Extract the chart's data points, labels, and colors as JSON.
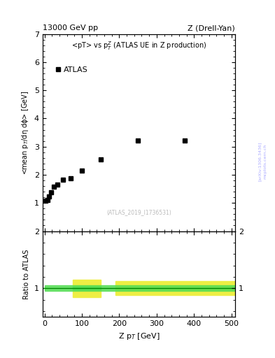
{
  "title_left": "13000 GeV pp",
  "title_right": "Z (Drell-Yan)",
  "main_title": "<pT> vs p$_T^Z$ (ATLAS UE in Z production)",
  "watermark": "(ATLAS_2019_I1736531)",
  "arxiv": "[arXiv:1306.3436]",
  "mcplots": "mcplots.cern.ch",
  "xlabel": "Z p$_T$ [GeV]",
  "ylabel": "<mean p$_T$/dη dϕ> [GeV]",
  "ylabel_ratio": "Ratio to ATLAS",
  "data_x": [
    2.5,
    7.5,
    12.5,
    17.5,
    25,
    35,
    50,
    70,
    100,
    150,
    250,
    375
  ],
  "data_y": [
    1.07,
    1.1,
    1.22,
    1.38,
    1.58,
    1.65,
    1.82,
    1.88,
    2.15,
    2.55,
    3.22,
    3.22
  ],
  "main_ylim": [
    0,
    7
  ],
  "main_yticks": [
    1,
    2,
    3,
    4,
    5,
    6,
    7
  ],
  "ratio_ylim": [
    0.5,
    2.0
  ],
  "ratio_yticks": [
    1,
    2
  ],
  "xlim": [
    -5,
    510
  ],
  "xticks": [
    0,
    100,
    200,
    300,
    400,
    500
  ],
  "green_color": "#55dd55",
  "yellow_color": "#eeee44",
  "ratio_line_color": "#008800",
  "bg_color": "#ffffff",
  "data_color": "#000000",
  "marker": "s",
  "marker_size": 4,
  "legend_label": "ATLAS",
  "right_label_color": "#aaaaff",
  "watermark_color": "#bbbbbb"
}
